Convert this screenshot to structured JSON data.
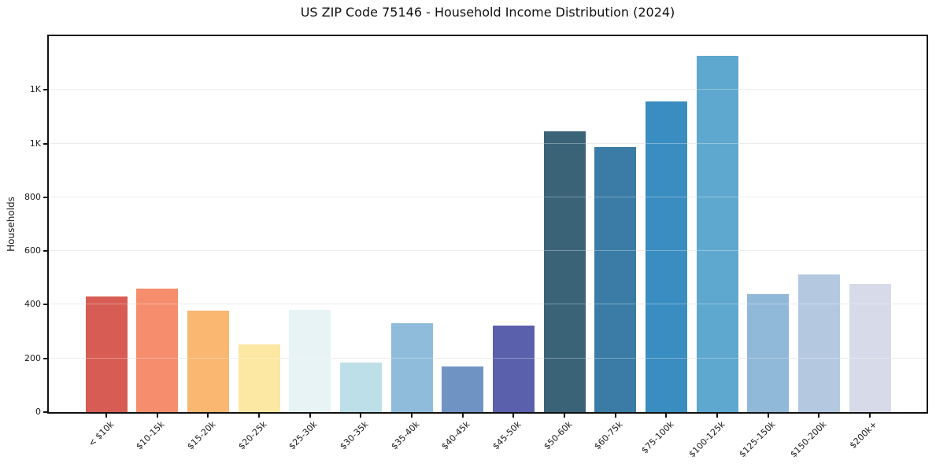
{
  "chart_data": {
    "type": "bar",
    "title": "US ZIP Code 75146 - Household Income Distribution (2024)",
    "xlabel": "",
    "ylabel": "Households",
    "categories": [
      "< $10k",
      "$10-15k",
      "$15-20k",
      "$20-25k",
      "$25-30k",
      "$30-35k",
      "$35-40k",
      "$40-45k",
      "$45-50k",
      "$50-60k",
      "$60-75k",
      "$75-100k",
      "$100-125k",
      "$125-150k",
      "$150-200k",
      "$200k+"
    ],
    "values": [
      430,
      460,
      377,
      251,
      381,
      186,
      330,
      170,
      322,
      1046,
      986,
      1157,
      1327,
      439,
      513,
      476
    ],
    "bar_colors": [
      "#d75d54",
      "#f68d6d",
      "#fab771",
      "#fce8a2",
      "#e7f3f4",
      "#bddfe8",
      "#90bcdc",
      "#6f94c4",
      "#5a60ac",
      "#3a6378",
      "#3a7ca5",
      "#3a8dc0",
      "#5ea8cf",
      "#90b8d8",
      "#b4c9e0",
      "#d7dae8"
    ],
    "ylim": [
      0,
      1400
    ],
    "yticks": [
      {
        "value": 0,
        "label": "0"
      },
      {
        "value": 200,
        "label": "200"
      },
      {
        "value": 400,
        "label": "400"
      },
      {
        "value": 600,
        "label": "600"
      },
      {
        "value": 800,
        "label": "800"
      },
      {
        "value": 1000,
        "label": "1K"
      },
      {
        "value": 1200,
        "label": "1K"
      }
    ],
    "grid": "horizontal",
    "legend": "none",
    "background": "#ffffff",
    "spine_color": "#121212"
  }
}
